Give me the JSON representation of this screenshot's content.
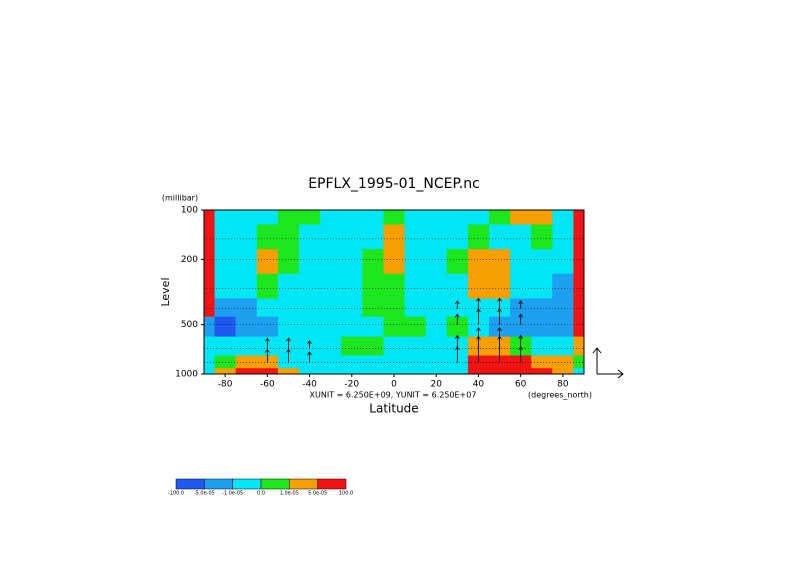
{
  "chart_data": {
    "type": "contour",
    "title": "EPFLX_1995-01_NCEP.nc",
    "y_unit_label": "(millibar)",
    "ylabel": "Level",
    "xlabel": "Latitude",
    "x_unit_label": "(degrees_north)",
    "vector_units": "XUNIT = 6.250E+09, YUNIT = 6.250E+07",
    "xlim": [
      -90,
      90
    ],
    "xticks": [
      -80,
      -60,
      -40,
      -20,
      0,
      20,
      40,
      60,
      80
    ],
    "ylim": [
      1000,
      100
    ],
    "yticks": [
      100,
      200,
      500,
      1000
    ],
    "ylog": true,
    "x": [
      -90,
      -80,
      -70,
      -60,
      -50,
      -40,
      -30,
      -20,
      -10,
      0,
      10,
      20,
      30,
      40,
      50,
      60,
      70,
      80,
      90
    ],
    "levels": [
      100,
      150,
      200,
      300,
      400,
      500,
      700,
      850,
      1000
    ],
    "values": [
      [
        0.0001,
        -5e-06,
        -5e-06,
        -5e-06,
        5e-06,
        5e-06,
        -5e-06,
        -5e-06,
        -5e-06,
        5e-06,
        -5e-06,
        -5e-06,
        -5e-06,
        -5e-06,
        5e-06,
        3e-05,
        3e-05,
        -5e-06,
        0.0001
      ],
      [
        0.0001,
        -5e-06,
        -5e-06,
        5e-06,
        5e-06,
        -5e-06,
        -5e-06,
        -5e-06,
        -5e-06,
        3e-05,
        -5e-06,
        -5e-06,
        -5e-06,
        5e-06,
        -5e-06,
        -5e-06,
        5e-06,
        -5e-06,
        0.0001
      ],
      [
        0.0001,
        -5e-06,
        -5e-06,
        3e-05,
        5e-06,
        -5e-06,
        -5e-06,
        -5e-06,
        5e-06,
        3e-05,
        -5e-06,
        -5e-06,
        5e-06,
        3e-05,
        3e-05,
        -5e-06,
        -5e-06,
        -5e-06,
        0.0001
      ],
      [
        0.0001,
        -5e-06,
        -5e-06,
        5e-06,
        -5e-06,
        -5e-06,
        -5e-06,
        -5e-06,
        5e-06,
        5e-06,
        -5e-06,
        -5e-06,
        -5e-06,
        3e-05,
        3e-05,
        -5e-06,
        -5e-06,
        -3e-05,
        0.0001
      ],
      [
        0.0001,
        -3e-05,
        -3e-05,
        -5e-06,
        -5e-06,
        -5e-06,
        -5e-06,
        -5e-06,
        5e-06,
        5e-06,
        -5e-06,
        -5e-06,
        -5e-06,
        -5e-06,
        -5e-06,
        -3e-05,
        -3e-05,
        -3e-05,
        0.0001
      ],
      [
        -3e-05,
        -0.0001,
        -3e-05,
        -3e-05,
        -5e-06,
        -5e-06,
        -5e-06,
        -5e-06,
        -5e-06,
        5e-06,
        5e-06,
        -5e-06,
        5e-06,
        -5e-06,
        -3e-05,
        -3e-05,
        -3e-05,
        -3e-05,
        0.0001
      ],
      [
        -5e-06,
        -5e-06,
        -5e-06,
        -5e-06,
        -5e-06,
        -5e-06,
        -5e-06,
        5e-06,
        5e-06,
        -5e-06,
        -5e-06,
        -5e-06,
        -5e-06,
        3e-05,
        3e-05,
        5e-06,
        -5e-06,
        -5e-06,
        3e-05
      ],
      [
        -5e-06,
        5e-06,
        3e-05,
        3e-05,
        -5e-06,
        -5e-06,
        -5e-06,
        -5e-06,
        -5e-06,
        -5e-06,
        -5e-06,
        -5e-06,
        -5e-06,
        0.0001,
        0.0001,
        0.0001,
        3e-05,
        3e-05,
        5e-06
      ],
      [
        -5e-06,
        3e-05,
        0.0001,
        0.0001,
        3e-05,
        -5e-06,
        -5e-06,
        -5e-06,
        -5e-06,
        -5e-06,
        -5e-06,
        -5e-06,
        -5e-06,
        0.0001,
        0.0001,
        0.0001,
        0.0001,
        3e-05,
        -5e-06
      ]
    ],
    "color_levels": [
      {
        "value": -100,
        "label": "-100.0"
      },
      {
        "value": -5e-05,
        "label": "-5.0e-05"
      },
      {
        "value": -1e-05,
        "label": "-1.0e-05"
      },
      {
        "value": 0,
        "label": "0.0"
      },
      {
        "value": 1e-05,
        "label": "1.0e-05"
      },
      {
        "value": 5e-05,
        "label": "5.0e-05"
      },
      {
        "value": 100,
        "label": "100.0"
      }
    ],
    "colors": [
      "#1e5af0",
      "#1ea0f0",
      "#00e6f5",
      "#1ee61e",
      "#f5a000",
      "#f01414"
    ],
    "vectors": {
      "x": [
        -60,
        -50,
        -40,
        -60,
        -50,
        -40,
        30,
        40,
        50,
        60,
        30,
        40,
        50,
        60,
        30,
        40,
        50,
        60,
        30,
        40,
        50,
        60
      ],
      "y": [
        700,
        700,
        700,
        850,
        850,
        850,
        400,
        400,
        400,
        400,
        500,
        500,
        500,
        500,
        700,
        700,
        700,
        700,
        850,
        850,
        850,
        850
      ],
      "v": [
        0.4,
        0.4,
        0.3,
        0.5,
        0.5,
        0.4,
        0.3,
        0.4,
        0.4,
        0.3,
        0.4,
        0.6,
        0.6,
        0.4,
        0.5,
        0.8,
        0.8,
        0.5,
        0.6,
        1.0,
        1.0,
        0.6
      ]
    }
  }
}
